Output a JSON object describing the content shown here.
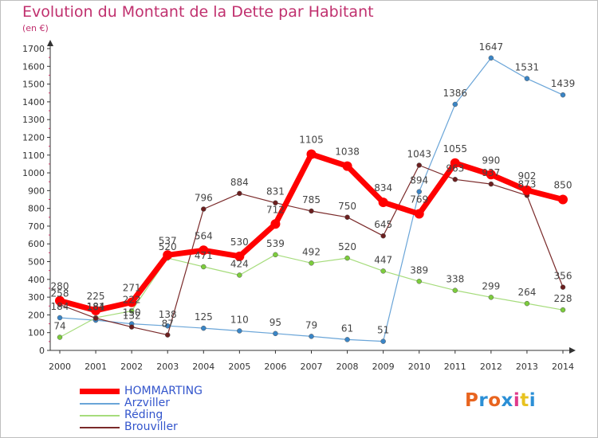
{
  "title": "Evolution du Montant de la Dette par Habitant",
  "subtitle": "(en €)",
  "logo": {
    "text": "Proxiti",
    "colors": [
      "#e8641f",
      "#2b8fd6",
      "#e8641f",
      "#2b8fd6",
      "#e03a8a",
      "#e8c21f",
      "#2b8fd6"
    ]
  },
  "chart_data": {
    "type": "line",
    "title": "Evolution du Montant de la Dette par Habitant",
    "ylabel": "(en €)",
    "xlabel": "",
    "ylim": [
      0,
      1700
    ],
    "yticks": [
      "0",
      "100",
      "200",
      "300",
      "400",
      "500",
      "600",
      "700",
      "800",
      "900",
      "1000",
      "1100",
      "1200",
      "1300",
      "1400",
      "1500",
      "1600",
      "1700"
    ],
    "categories": [
      "2000",
      "2001",
      "2002",
      "2003",
      "2004",
      "2005",
      "2006",
      "2007",
      "2008",
      "2009",
      "2010",
      "2011",
      "2012",
      "2013",
      "2014"
    ],
    "grid": false,
    "legend_position": "bottom-left",
    "series": [
      {
        "name": "Arzviller",
        "color": "#6aa5d8",
        "point_color": "#3a85c6",
        "width": 1.2,
        "r": 3,
        "values": [
          184,
          170,
          150,
          138,
          125,
          110,
          95,
          79,
          61,
          51,
          894,
          1386,
          1647,
          1531,
          1439
        ],
        "labels": [
          "184",
          "",
          "150",
          "138",
          "125",
          "110",
          "95",
          "79",
          "61",
          "51",
          "894",
          "1386",
          "1647",
          "1531",
          "1439"
        ]
      },
      {
        "name": "Réding",
        "color": "#a6dc7c",
        "point_color": "#7ccc3c",
        "width": 1.2,
        "r": 3,
        "values": [
          74,
          184,
          222,
          520,
          471,
          424,
          539,
          492,
          520,
          447,
          389,
          338,
          299,
          264,
          228
        ],
        "labels": [
          "74",
          "184",
          "222",
          "520",
          "471",
          "424",
          "539",
          "492",
          "520",
          "447",
          "389",
          "338",
          "299",
          "264",
          "228"
        ]
      },
      {
        "name": "Brouviller",
        "color": "#7a2a2a",
        "point_color": "#6b1f1f",
        "width": 1.2,
        "r": 3,
        "values": [
          258,
          181,
          132,
          87,
          796,
          884,
          831,
          785,
          750,
          645,
          1043,
          963,
          937,
          873,
          356
        ],
        "labels": [
          "258",
          "181",
          "132",
          "87",
          "796",
          "884",
          "831",
          "785",
          "750",
          "645",
          "1043",
          "963",
          "937",
          "873",
          "356"
        ]
      },
      {
        "name": "HOMMARTING",
        "color": "#ff0000",
        "point_color": "#ff0000",
        "width": 7,
        "r": 6,
        "values": [
          280,
          225,
          271,
          537,
          564,
          530,
          712,
          1105,
          1038,
          834,
          769,
          1055,
          990,
          902,
          850
        ],
        "labels": [
          "280",
          "225",
          "271",
          "537",
          "564",
          "530",
          "712",
          "1105",
          "1038",
          "834",
          "769",
          "1055",
          "990",
          "902",
          "850"
        ]
      }
    ],
    "legend": [
      "HOMMARTING",
      "Arzviller",
      "Réding",
      "Brouviller"
    ]
  }
}
